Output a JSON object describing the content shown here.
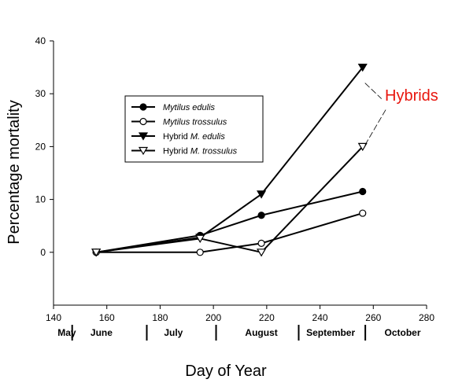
{
  "chart_data": {
    "type": "line",
    "xlabel": "Day of Year",
    "ylabel": "Percentage mortality",
    "xlim": [
      140,
      280
    ],
    "ylim": [
      -10,
      40
    ],
    "xticks": [
      140,
      160,
      180,
      200,
      220,
      240,
      260,
      280
    ],
    "yticks": [
      0,
      10,
      20,
      30,
      40
    ],
    "grid": false,
    "legend_position": "upper-left-inside",
    "months": [
      {
        "label": "May",
        "center": 145
      },
      {
        "label": "June",
        "center": 158
      },
      {
        "label": "July",
        "center": 185
      },
      {
        "label": "August",
        "center": 218
      },
      {
        "label": "September",
        "center": 244
      },
      {
        "label": "October",
        "center": 271
      }
    ],
    "month_dividers": [
      147,
      175,
      201,
      232,
      257
    ],
    "annotation": {
      "text": "Hybrids",
      "color": "#e8150d",
      "targets": [
        35,
        20
      ],
      "at_x": 256
    },
    "series": [
      {
        "name": "Mytilus edulis",
        "italic": "all",
        "marker": "circle-filled",
        "x": [
          156,
          195,
          218,
          256
        ],
        "y": [
          0,
          3.2,
          7,
          11.5
        ]
      },
      {
        "name": "Mytilus trossulus",
        "italic": "all",
        "marker": "circle-open",
        "x": [
          156,
          195,
          218,
          256
        ],
        "y": [
          0,
          0,
          1.7,
          7.4
        ]
      },
      {
        "name_prefix": "Hybrid",
        "name_italic": "M. edulis",
        "marker": "triangle-down-filled",
        "x": [
          156,
          195,
          218,
          256
        ],
        "y": [
          0,
          2.8,
          11,
          35
        ]
      },
      {
        "name_prefix": "Hybrid",
        "name_italic": "M. trossulus",
        "marker": "triangle-down-open",
        "x": [
          156,
          195,
          218,
          256
        ],
        "y": [
          0,
          2.6,
          0,
          20
        ]
      }
    ]
  }
}
